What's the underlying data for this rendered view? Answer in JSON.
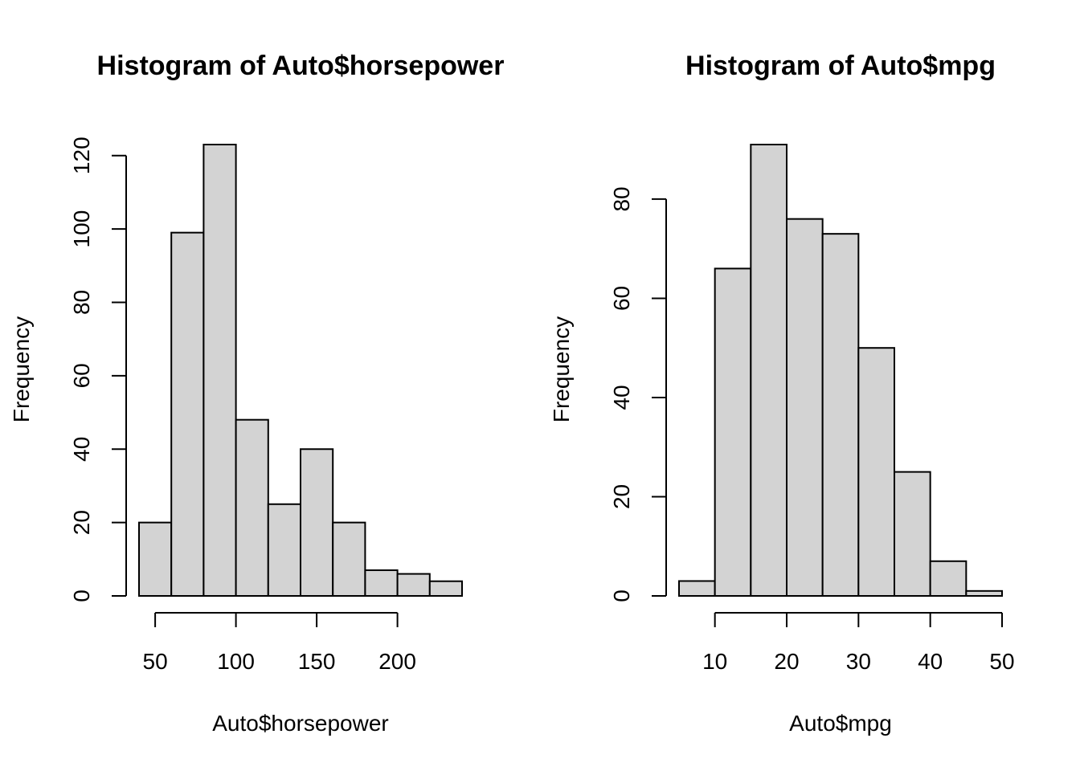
{
  "chart_data": [
    {
      "type": "bar",
      "title": "Histogram of Auto$horsepower",
      "xlabel": "Auto$horsepower",
      "ylabel": "Frequency",
      "bin_edges": [
        40,
        60,
        80,
        100,
        120,
        140,
        160,
        180,
        200,
        220,
        240
      ],
      "values": [
        20,
        99,
        123,
        48,
        25,
        40,
        20,
        7,
        6,
        4
      ],
      "xticks": [
        50,
        100,
        150,
        200
      ],
      "yticks": [
        0,
        20,
        40,
        60,
        80,
        100,
        120
      ],
      "xlim": [
        40,
        240
      ],
      "ylim": [
        0,
        123
      ],
      "bar_color": "#d3d3d3",
      "grid": false
    },
    {
      "type": "bar",
      "title": "Histogram of Auto$mpg",
      "xlabel": "Auto$mpg",
      "ylabel": "Frequency",
      "bin_edges": [
        5,
        10,
        15,
        20,
        25,
        30,
        35,
        40,
        45,
        50
      ],
      "values": [
        3,
        66,
        91,
        76,
        73,
        50,
        25,
        7,
        1
      ],
      "xticks": [
        10,
        20,
        30,
        40,
        50
      ],
      "yticks": [
        0,
        20,
        40,
        60,
        80
      ],
      "xlim": [
        5,
        50
      ],
      "ylim": [
        0,
        91
      ],
      "bar_color": "#d3d3d3",
      "grid": false
    }
  ]
}
